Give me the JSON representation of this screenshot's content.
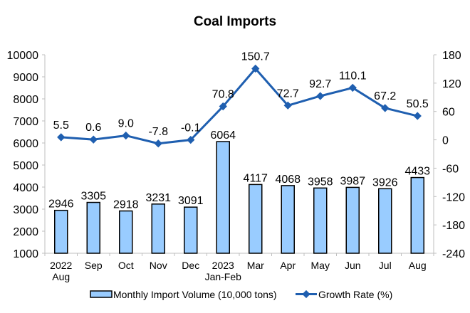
{
  "chart_data": {
    "type": "bar+line",
    "title": "Coal Imports",
    "categories": [
      [
        "2022",
        "Aug"
      ],
      [
        "Sep"
      ],
      [
        "Oct"
      ],
      [
        "Nov"
      ],
      [
        "Dec"
      ],
      [
        "2023",
        "Jan-Feb"
      ],
      [
        "Mar"
      ],
      [
        "Apr"
      ],
      [
        "May"
      ],
      [
        "Jun"
      ],
      [
        "Jul"
      ],
      [
        "Aug"
      ]
    ],
    "series": [
      {
        "name": "Monthly Import Volume (10,000 tons)",
        "type": "bar",
        "axis": "left",
        "color": "#99ccff",
        "values": [
          2946,
          3305,
          2918,
          3231,
          3091,
          6064,
          4117,
          4068,
          3958,
          3987,
          3926,
          4433
        ],
        "labels": [
          "2946",
          "3305",
          "2918",
          "3231",
          "3091",
          "6064",
          "4117",
          "4068",
          "3958",
          "3987",
          "3926",
          "4433"
        ]
      },
      {
        "name": "Growth Rate (%)",
        "type": "line",
        "axis": "right",
        "color": "#1f5fb0",
        "values": [
          5.5,
          0.6,
          9.0,
          -7.8,
          -0.1,
          70.8,
          150.7,
          72.7,
          92.7,
          110.1,
          67.2,
          50.5
        ],
        "labels": [
          "5.5",
          "0.6",
          "9.0",
          "-7.8",
          "-0.1",
          "70.8",
          "150.7",
          "72.7",
          "92.7",
          "110.1",
          "67.2",
          "50.5"
        ]
      }
    ],
    "left_axis": {
      "ylim": [
        1000,
        10000
      ],
      "ticks": [
        "1000",
        "2000",
        "3000",
        "4000",
        "5000",
        "6000",
        "7000",
        "8000",
        "9000",
        "10000"
      ]
    },
    "right_axis": {
      "ylim": [
        -240,
        180
      ],
      "ticks": [
        "-240",
        "-180",
        "-120",
        "-60",
        "0",
        "60",
        "120",
        "180"
      ]
    },
    "xlabel": "",
    "ylabel": "",
    "grid": false,
    "legend_position": "bottom"
  }
}
